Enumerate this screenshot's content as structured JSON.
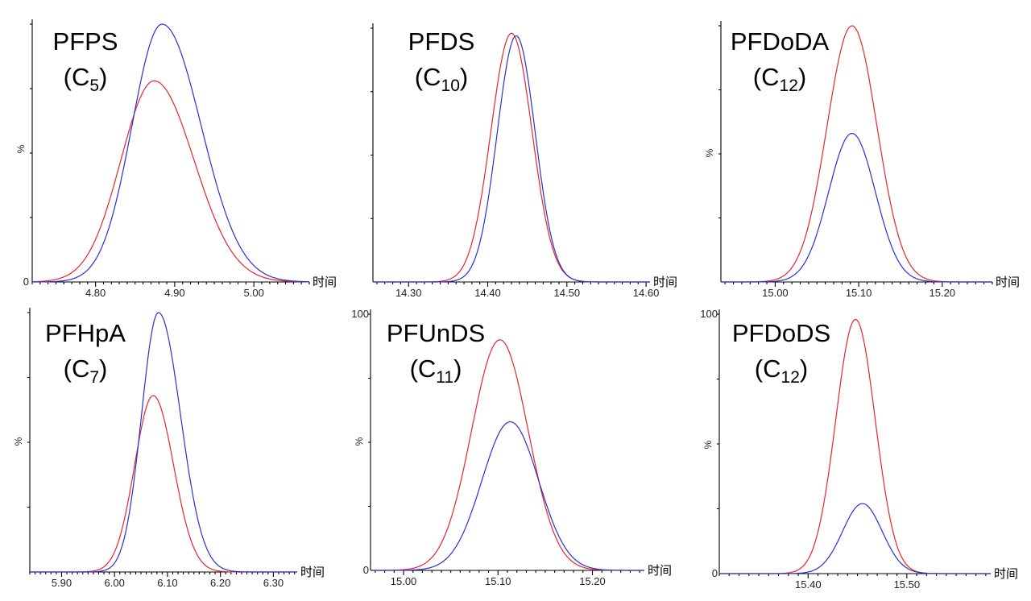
{
  "colors": {
    "red_trace": "#e8242c",
    "blue_trace": "#2b2fd0",
    "axis": "#000000"
  },
  "chart_data": [
    {
      "type": "line",
      "compound": "PFPS",
      "carbon_prefix": "(C",
      "carbon_sub": "5",
      "carbon_suffix": ")",
      "xlabel": "时间",
      "ylabel": "%",
      "xlim": [
        4.72,
        5.07
      ],
      "ylim": [
        0,
        100
      ],
      "xticks": [
        "4.80",
        "4.90",
        "5.00"
      ],
      "yticks": [
        "0"
      ],
      "series": [
        {
          "color": "red",
          "center": 4.874,
          "sigma": 0.042,
          "height": 78,
          "tail": 0.02
        },
        {
          "color": "blue",
          "center": 4.884,
          "sigma": 0.038,
          "height": 100,
          "tail": 0.03
        }
      ]
    },
    {
      "type": "line",
      "compound": "PFDS",
      "carbon_prefix": "(C",
      "carbon_sub": "10",
      "carbon_suffix": ")",
      "xlabel": "时间",
      "ylabel": "",
      "xlim": [
        14.255,
        14.605
      ],
      "ylim": [
        0,
        100
      ],
      "xticks": [
        "14.30",
        "14.40",
        "14.50",
        "14.60"
      ],
      "yticks": [],
      "series": [
        {
          "color": "red",
          "center": 14.43,
          "sigma": 0.026,
          "height": 98,
          "tail": 0.0
        },
        {
          "color": "blue",
          "center": 14.436,
          "sigma": 0.024,
          "height": 97,
          "tail": 0.0
        }
      ]
    },
    {
      "type": "line",
      "compound": "PFDoDA",
      "carbon_prefix": "(C",
      "carbon_sub": "12",
      "carbon_suffix": ")",
      "xlabel": "时间",
      "ylabel": "%",
      "xlim": [
        14.935,
        15.26
      ],
      "ylim": [
        0,
        100
      ],
      "xticks": [
        "15.00",
        "15.10",
        "15.20"
      ],
      "yticks": [],
      "series": [
        {
          "color": "red",
          "center": 15.092,
          "sigma": 0.03,
          "height": 100,
          "tail": 0.0
        },
        {
          "color": "blue",
          "center": 15.092,
          "sigma": 0.028,
          "height": 58,
          "tail": 0.0
        }
      ]
    },
    {
      "type": "line",
      "compound": "PFHpA",
      "carbon_prefix": "(C",
      "carbon_sub": "7",
      "carbon_suffix": ")",
      "xlabel": "时间",
      "ylabel": "%",
      "xlim": [
        5.84,
        6.345
      ],
      "ylim": [
        0,
        100
      ],
      "xticks": [
        "5.90",
        "6.00",
        "6.10",
        "6.20",
        "6.30"
      ],
      "yticks": [],
      "series": [
        {
          "color": "red",
          "center": 6.073,
          "sigma": 0.035,
          "height": 68,
          "tail": 0.01
        },
        {
          "color": "blue",
          "center": 6.083,
          "sigma": 0.032,
          "height": 100,
          "tail": 0.03
        }
      ]
    },
    {
      "type": "line",
      "compound": "PFUnDS",
      "carbon_prefix": "(C",
      "carbon_sub": "11",
      "carbon_suffix": ")",
      "xlabel": "时间",
      "ylabel": "%",
      "xlim": [
        14.965,
        15.255
      ],
      "ylim": [
        0,
        100
      ],
      "xticks": [
        "15.00",
        "15.10",
        "15.20"
      ],
      "yticks": [
        "100",
        "0"
      ],
      "series": [
        {
          "color": "red",
          "center": 15.102,
          "sigma": 0.03,
          "height": 90,
          "tail": 0.0
        },
        {
          "color": "blue",
          "center": 15.113,
          "sigma": 0.03,
          "height": 58,
          "tail": 0.0
        }
      ]
    },
    {
      "type": "line",
      "compound": "PFDoDS",
      "carbon_prefix": "(C",
      "carbon_sub": "12",
      "carbon_suffix": ")",
      "xlabel": "时间",
      "ylabel": "%",
      "xlim": [
        15.31,
        15.585
      ],
      "ylim": [
        0,
        100
      ],
      "xticks": [
        "15.40",
        "15.50"
      ],
      "yticks": [
        "100",
        "0"
      ],
      "series": [
        {
          "color": "red",
          "center": 15.448,
          "sigma": 0.02,
          "height": 98,
          "tail": 0.0
        },
        {
          "color": "blue",
          "center": 15.455,
          "sigma": 0.02,
          "height": 27,
          "tail": 0.0
        }
      ]
    }
  ]
}
